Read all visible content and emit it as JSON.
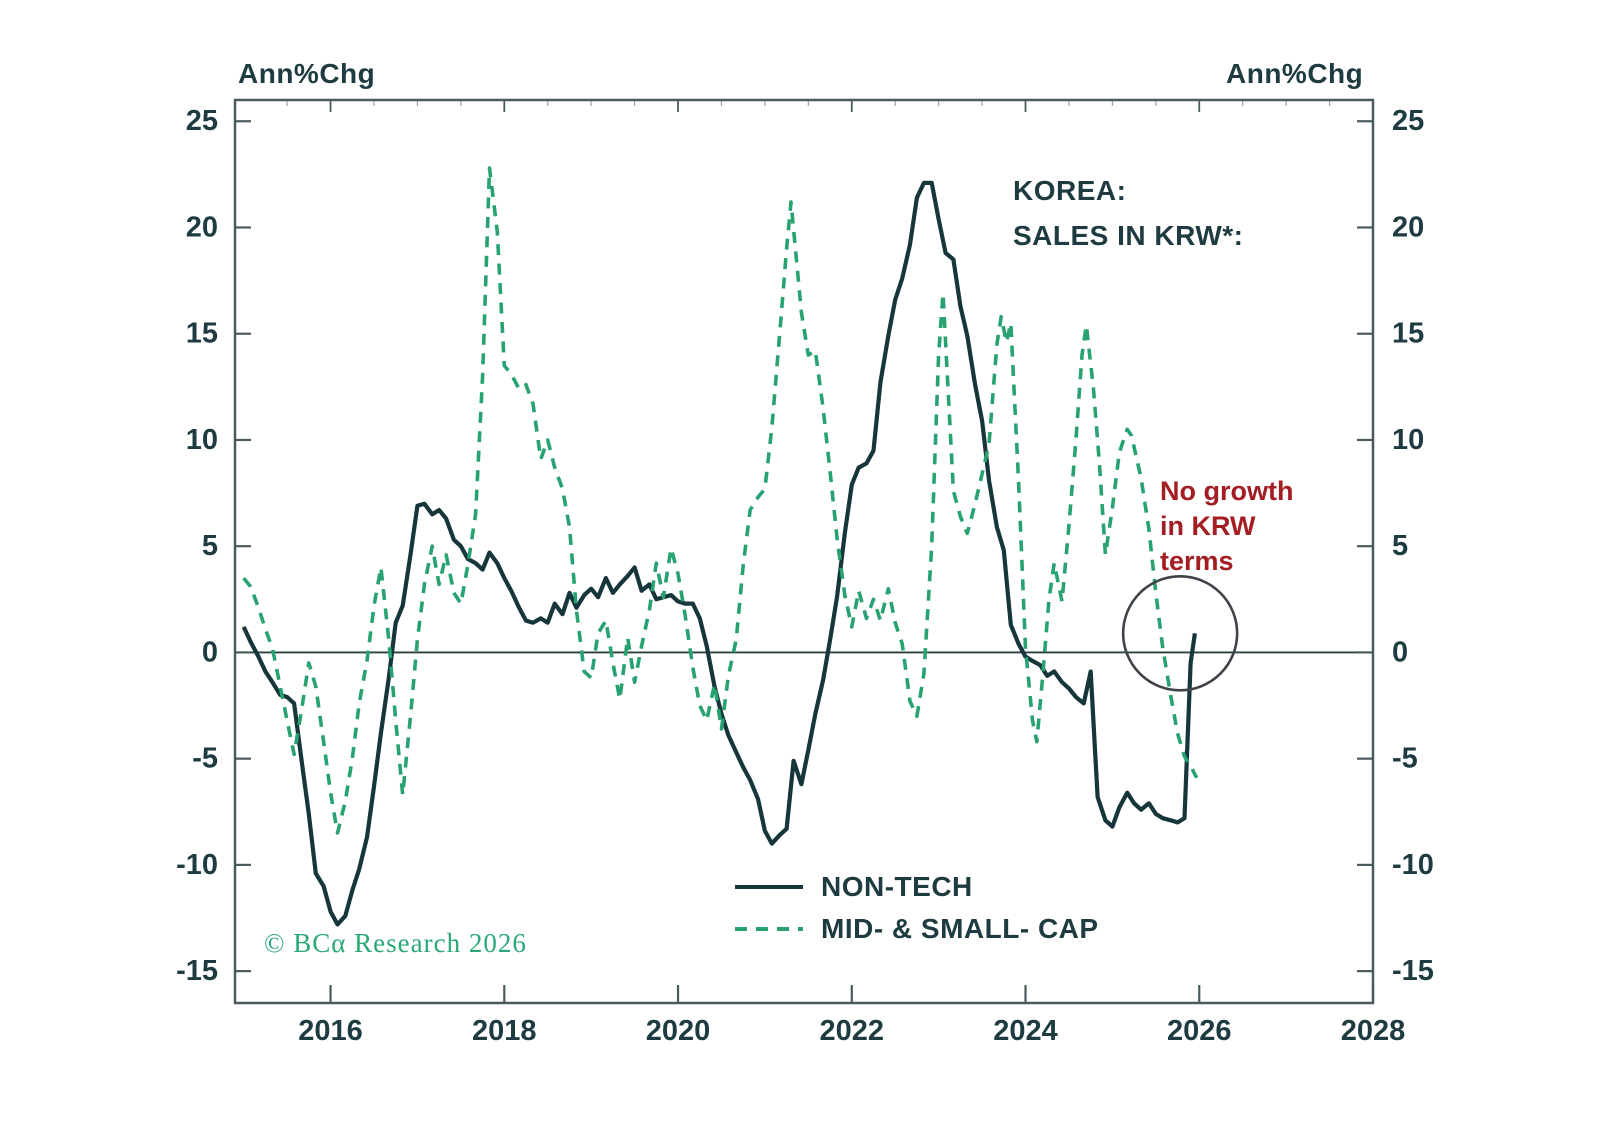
{
  "header": {
    "left_axis_label": "Ann%Chg",
    "right_axis_label": "Ann%Chg"
  },
  "title": {
    "line1": "KOREA:",
    "line2": "SALES IN KRW*:"
  },
  "annotation": {
    "lines": [
      "No growth",
      "in KRW",
      "terms"
    ],
    "color": "#a31d23"
  },
  "watermark": {
    "text": "© BCα Research 2026",
    "color": "#2aa876"
  },
  "legend": [
    {
      "label": "NON-TECH",
      "style": "solid",
      "color": "#17363c"
    },
    {
      "label": "MID- & SMALL- CAP",
      "style": "dashed",
      "color": "#28a271"
    }
  ],
  "colors": {
    "text": "#1d3b40",
    "axis": "#4a5b5e",
    "zero_line": "#2e3f42",
    "circle": "#3d4348",
    "non_tech": "#17363c",
    "mid_small": "#28a271",
    "annotation_red": "#a31d23",
    "watermark_green": "#2aa876"
  },
  "chart_data": {
    "type": "line",
    "title": "KOREA: SALES IN KRW*:",
    "ylabel_left": "Ann%Chg",
    "ylabel_right": "Ann%Chg",
    "xlim": [
      2014.9,
      2028.0
    ],
    "ylim": [
      -16.5,
      26.0
    ],
    "x_ticks": [
      2016,
      2018,
      2020,
      2022,
      2024,
      2026,
      2028
    ],
    "y_ticks": [
      25,
      20,
      15,
      10,
      5,
      0,
      -5,
      -10,
      -15
    ],
    "grid": false,
    "zero_line": true,
    "legend_position": "bottom-center-inside",
    "circle_annotation": {
      "x": 2025.78,
      "y": 0.9,
      "radius_px": 57
    },
    "series": [
      {
        "name": "NON-TECH",
        "style": "solid",
        "color": "#17363c",
        "points": [
          [
            2015.0,
            1.2
          ],
          [
            2015.08,
            0.5
          ],
          [
            2015.17,
            -0.2
          ],
          [
            2015.25,
            -0.9
          ],
          [
            2015.33,
            -1.4
          ],
          [
            2015.42,
            -2.0
          ],
          [
            2015.5,
            -2.1
          ],
          [
            2015.58,
            -2.4
          ],
          [
            2015.67,
            -5.2
          ],
          [
            2015.75,
            -7.6
          ],
          [
            2015.83,
            -10.4
          ],
          [
            2015.92,
            -11.0
          ],
          [
            2016.0,
            -12.2
          ],
          [
            2016.08,
            -12.8
          ],
          [
            2016.17,
            -12.4
          ],
          [
            2016.25,
            -11.2
          ],
          [
            2016.33,
            -10.2
          ],
          [
            2016.42,
            -8.7
          ],
          [
            2016.5,
            -6.3
          ],
          [
            2016.58,
            -3.8
          ],
          [
            2016.67,
            -1.2
          ],
          [
            2016.75,
            1.4
          ],
          [
            2016.83,
            2.2
          ],
          [
            2016.92,
            4.6
          ],
          [
            2017.0,
            6.9
          ],
          [
            2017.08,
            7.0
          ],
          [
            2017.17,
            6.5
          ],
          [
            2017.25,
            6.7
          ],
          [
            2017.33,
            6.3
          ],
          [
            2017.42,
            5.3
          ],
          [
            2017.5,
            5.0
          ],
          [
            2017.58,
            4.4
          ],
          [
            2017.67,
            4.2
          ],
          [
            2017.75,
            3.9
          ],
          [
            2017.83,
            4.7
          ],
          [
            2017.92,
            4.2
          ],
          [
            2018.0,
            3.5
          ],
          [
            2018.08,
            2.9
          ],
          [
            2018.17,
            2.1
          ],
          [
            2018.25,
            1.5
          ],
          [
            2018.33,
            1.4
          ],
          [
            2018.42,
            1.6
          ],
          [
            2018.5,
            1.4
          ],
          [
            2018.58,
            2.3
          ],
          [
            2018.67,
            1.8
          ],
          [
            2018.75,
            2.8
          ],
          [
            2018.83,
            2.1
          ],
          [
            2018.92,
            2.7
          ],
          [
            2019.0,
            3.0
          ],
          [
            2019.08,
            2.6
          ],
          [
            2019.17,
            3.5
          ],
          [
            2019.25,
            2.8
          ],
          [
            2019.33,
            3.2
          ],
          [
            2019.42,
            3.6
          ],
          [
            2019.5,
            4.0
          ],
          [
            2019.58,
            2.9
          ],
          [
            2019.67,
            3.2
          ],
          [
            2019.75,
            2.5
          ],
          [
            2019.83,
            2.6
          ],
          [
            2019.92,
            2.7
          ],
          [
            2020.0,
            2.4
          ],
          [
            2020.08,
            2.3
          ],
          [
            2020.17,
            2.3
          ],
          [
            2020.25,
            1.6
          ],
          [
            2020.33,
            0.3
          ],
          [
            2020.42,
            -1.6
          ],
          [
            2020.5,
            -2.9
          ],
          [
            2020.58,
            -3.9
          ],
          [
            2020.67,
            -4.7
          ],
          [
            2020.75,
            -5.4
          ],
          [
            2020.83,
            -6.0
          ],
          [
            2020.92,
            -6.9
          ],
          [
            2021.0,
            -8.4
          ],
          [
            2021.08,
            -9.0
          ],
          [
            2021.17,
            -8.6
          ],
          [
            2021.25,
            -8.3
          ],
          [
            2021.33,
            -5.1
          ],
          [
            2021.42,
            -6.2
          ],
          [
            2021.5,
            -4.6
          ],
          [
            2021.58,
            -2.9
          ],
          [
            2021.67,
            -1.3
          ],
          [
            2021.75,
            0.6
          ],
          [
            2021.83,
            2.6
          ],
          [
            2021.92,
            5.6
          ],
          [
            2022.0,
            7.9
          ],
          [
            2022.08,
            8.7
          ],
          [
            2022.17,
            8.9
          ],
          [
            2022.25,
            9.5
          ],
          [
            2022.33,
            12.7
          ],
          [
            2022.42,
            14.9
          ],
          [
            2022.5,
            16.6
          ],
          [
            2022.58,
            17.6
          ],
          [
            2022.67,
            19.2
          ],
          [
            2022.75,
            21.4
          ],
          [
            2022.83,
            22.1
          ],
          [
            2022.92,
            22.1
          ],
          [
            2023.0,
            20.4
          ],
          [
            2023.08,
            18.8
          ],
          [
            2023.17,
            18.5
          ],
          [
            2023.25,
            16.3
          ],
          [
            2023.33,
            14.9
          ],
          [
            2023.42,
            12.6
          ],
          [
            2023.5,
            10.9
          ],
          [
            2023.58,
            8.1
          ],
          [
            2023.67,
            5.9
          ],
          [
            2023.75,
            4.8
          ],
          [
            2023.83,
            1.3
          ],
          [
            2023.92,
            0.4
          ],
          [
            2024.0,
            -0.2
          ],
          [
            2024.08,
            -0.4
          ],
          [
            2024.17,
            -0.6
          ],
          [
            2024.25,
            -1.1
          ],
          [
            2024.33,
            -0.9
          ],
          [
            2024.42,
            -1.4
          ],
          [
            2024.5,
            -1.7
          ],
          [
            2024.58,
            -2.1
          ],
          [
            2024.67,
            -2.4
          ],
          [
            2024.75,
            -0.9
          ],
          [
            2024.83,
            -6.8
          ],
          [
            2024.92,
            -7.9
          ],
          [
            2025.0,
            -8.2
          ],
          [
            2025.08,
            -7.3
          ],
          [
            2025.17,
            -6.6
          ],
          [
            2025.25,
            -7.1
          ],
          [
            2025.33,
            -7.4
          ],
          [
            2025.42,
            -7.1
          ],
          [
            2025.5,
            -7.6
          ],
          [
            2025.58,
            -7.8
          ],
          [
            2025.67,
            -7.9
          ],
          [
            2025.75,
            -8.0
          ],
          [
            2025.83,
            -7.8
          ],
          [
            2025.9,
            -0.5
          ],
          [
            2025.95,
            0.9
          ]
        ]
      },
      {
        "name": "MID- & SMALL- CAP",
        "style": "dashed",
        "color": "#28a271",
        "points": [
          [
            2015.0,
            3.5
          ],
          [
            2015.08,
            3.1
          ],
          [
            2015.17,
            2.1
          ],
          [
            2015.25,
            1.1
          ],
          [
            2015.33,
            0.2
          ],
          [
            2015.42,
            -1.6
          ],
          [
            2015.5,
            -3.2
          ],
          [
            2015.58,
            -4.8
          ],
          [
            2015.67,
            -2.6
          ],
          [
            2015.75,
            -0.5
          ],
          [
            2015.83,
            -1.6
          ],
          [
            2015.92,
            -4.2
          ],
          [
            2016.0,
            -6.6
          ],
          [
            2016.08,
            -8.5
          ],
          [
            2016.17,
            -7.0
          ],
          [
            2016.25,
            -5.0
          ],
          [
            2016.33,
            -2.4
          ],
          [
            2016.42,
            -0.4
          ],
          [
            2016.5,
            2.2
          ],
          [
            2016.58,
            4.0
          ],
          [
            2016.67,
            0.6
          ],
          [
            2016.75,
            -3.2
          ],
          [
            2016.83,
            -6.7
          ],
          [
            2016.92,
            -3.0
          ],
          [
            2017.0,
            0.6
          ],
          [
            2017.08,
            3.2
          ],
          [
            2017.17,
            5.0
          ],
          [
            2017.25,
            3.2
          ],
          [
            2017.33,
            4.6
          ],
          [
            2017.42,
            2.8
          ],
          [
            2017.5,
            2.3
          ],
          [
            2017.58,
            4.1
          ],
          [
            2017.67,
            6.5
          ],
          [
            2017.75,
            13.0
          ],
          [
            2017.83,
            22.8
          ],
          [
            2017.92,
            19.8
          ],
          [
            2018.0,
            13.5
          ],
          [
            2018.08,
            13.1
          ],
          [
            2018.17,
            12.4
          ],
          [
            2018.25,
            12.6
          ],
          [
            2018.33,
            11.7
          ],
          [
            2018.42,
            9.1
          ],
          [
            2018.5,
            10.0
          ],
          [
            2018.58,
            8.7
          ],
          [
            2018.67,
            7.7
          ],
          [
            2018.75,
            5.9
          ],
          [
            2018.83,
            2.0
          ],
          [
            2018.92,
            -0.9
          ],
          [
            2019.0,
            -1.2
          ],
          [
            2019.08,
            0.9
          ],
          [
            2019.17,
            1.5
          ],
          [
            2019.25,
            -0.5
          ],
          [
            2019.33,
            -2.2
          ],
          [
            2019.42,
            0.7
          ],
          [
            2019.5,
            -1.4
          ],
          [
            2019.58,
            0.3
          ],
          [
            2019.67,
            2.0
          ],
          [
            2019.75,
            4.2
          ],
          [
            2019.83,
            2.6
          ],
          [
            2019.92,
            4.9
          ],
          [
            2020.0,
            3.7
          ],
          [
            2020.08,
            1.8
          ],
          [
            2020.17,
            -0.7
          ],
          [
            2020.25,
            -2.5
          ],
          [
            2020.33,
            -3.2
          ],
          [
            2020.42,
            -1.5
          ],
          [
            2020.5,
            -3.6
          ],
          [
            2020.58,
            -1.1
          ],
          [
            2020.67,
            0.6
          ],
          [
            2020.75,
            4.1
          ],
          [
            2020.83,
            6.7
          ],
          [
            2020.92,
            7.3
          ],
          [
            2021.0,
            7.7
          ],
          [
            2021.08,
            10.6
          ],
          [
            2021.17,
            15.0
          ],
          [
            2021.25,
            19.0
          ],
          [
            2021.3,
            21.2
          ],
          [
            2021.42,
            16.0
          ],
          [
            2021.5,
            14.0
          ],
          [
            2021.58,
            14.2
          ],
          [
            2021.67,
            11.5
          ],
          [
            2021.75,
            8.5
          ],
          [
            2021.83,
            5.4
          ],
          [
            2021.92,
            2.7
          ],
          [
            2022.0,
            1.2
          ],
          [
            2022.08,
            2.9
          ],
          [
            2022.17,
            1.6
          ],
          [
            2022.25,
            2.5
          ],
          [
            2022.33,
            1.5
          ],
          [
            2022.42,
            3.0
          ],
          [
            2022.5,
            1.4
          ],
          [
            2022.58,
            0.4
          ],
          [
            2022.67,
            -2.3
          ],
          [
            2022.75,
            -3.0
          ],
          [
            2022.83,
            -1.0
          ],
          [
            2022.92,
            5.0
          ],
          [
            2023.0,
            14.0
          ],
          [
            2023.05,
            16.9
          ],
          [
            2023.17,
            7.6
          ],
          [
            2023.25,
            6.4
          ],
          [
            2023.33,
            5.6
          ],
          [
            2023.42,
            7.0
          ],
          [
            2023.5,
            8.4
          ],
          [
            2023.58,
            9.8
          ],
          [
            2023.67,
            14.5
          ],
          [
            2023.72,
            15.8
          ],
          [
            2023.78,
            14.6
          ],
          [
            2023.83,
            15.5
          ],
          [
            2023.92,
            8.0
          ],
          [
            2024.0,
            0.2
          ],
          [
            2024.08,
            -3.2
          ],
          [
            2024.13,
            -4.2
          ],
          [
            2024.2,
            -1.0
          ],
          [
            2024.27,
            2.5
          ],
          [
            2024.33,
            4.2
          ],
          [
            2024.42,
            2.4
          ],
          [
            2024.5,
            6.0
          ],
          [
            2024.58,
            10.0
          ],
          [
            2024.65,
            14.0
          ],
          [
            2024.7,
            15.4
          ],
          [
            2024.78,
            12.5
          ],
          [
            2024.85,
            8.9
          ],
          [
            2024.92,
            4.6
          ],
          [
            2025.0,
            6.8
          ],
          [
            2025.08,
            9.4
          ],
          [
            2025.17,
            10.5
          ],
          [
            2025.22,
            10.2
          ],
          [
            2025.33,
            8.2
          ],
          [
            2025.42,
            5.8
          ],
          [
            2025.5,
            2.8
          ],
          [
            2025.58,
            0.2
          ],
          [
            2025.67,
            -2.0
          ],
          [
            2025.75,
            -3.8
          ],
          [
            2025.83,
            -4.9
          ],
          [
            2025.92,
            -5.5
          ],
          [
            2025.97,
            -5.9
          ]
        ]
      }
    ]
  }
}
